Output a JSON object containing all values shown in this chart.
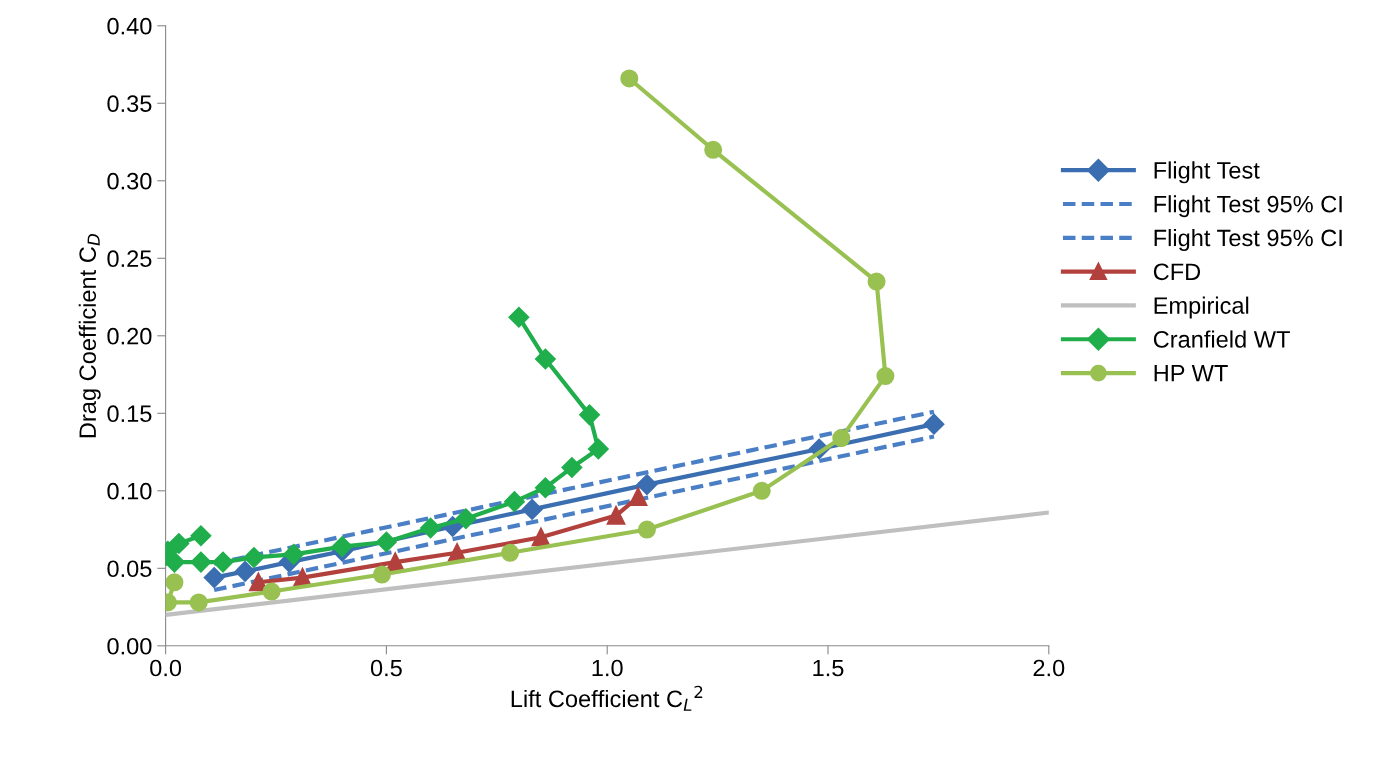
{
  "chart_data": {
    "type": "line",
    "xlabel": "Lift Coefficient C$_{L}$$^{2}$",
    "ylabel": "Drag Coefficient C$_{D}$",
    "xlim": [
      0,
      2.0
    ],
    "ylim": [
      0,
      0.4
    ],
    "xticks": [
      {
        "value": 0,
        "label": "0.0"
      },
      {
        "value": 0.5,
        "label": "0.5"
      },
      {
        "value": 1.0,
        "label": "1.0"
      },
      {
        "value": 1.5,
        "label": "1.5"
      },
      {
        "value": 2.0,
        "label": "2.0"
      }
    ],
    "yticks": [
      {
        "value": 0,
        "label": "0.00"
      },
      {
        "value": 0.05,
        "label": "0.05"
      },
      {
        "value": 0.1,
        "label": "0.10"
      },
      {
        "value": 0.15,
        "label": "0.15"
      },
      {
        "value": 0.2,
        "label": "0.20"
      },
      {
        "value": 0.25,
        "label": "0.25"
      },
      {
        "value": 0.3,
        "label": "0.30"
      },
      {
        "value": 0.35,
        "label": "0.35"
      },
      {
        "value": 0.4,
        "label": "0.40"
      }
    ],
    "grid": false,
    "legend": "right",
    "series": [
      {
        "name": "Flight Test",
        "color": "#3a6eb0",
        "marker": "diamond",
        "line_style": "solid",
        "x": [
          0.11,
          0.18,
          0.28,
          0.4,
          0.65,
          0.83,
          1.09,
          1.48,
          1.74
        ],
        "values": [
          0.044,
          0.048,
          0.054,
          0.061,
          0.077,
          0.088,
          0.104,
          0.127,
          0.143
        ]
      },
      {
        "name": "Flight Test 95% CI",
        "color": "#4a7fc6",
        "marker": "none",
        "line_style": "dashed",
        "x": [
          0.11,
          1.74
        ],
        "values": [
          0.053,
          0.151
        ]
      },
      {
        "name": "Flight Test 95% CI",
        "color": "#4a7fc6",
        "marker": "none",
        "line_style": "dashed",
        "x": [
          0.11,
          1.74
        ],
        "values": [
          0.036,
          0.135
        ]
      },
      {
        "name": "CFD",
        "color": "#b2403c",
        "marker": "triangle",
        "line_style": "solid",
        "x": [
          0.21,
          0.31,
          0.52,
          0.66,
          0.85,
          1.02,
          1.07
        ],
        "values": [
          0.041,
          0.044,
          0.054,
          0.06,
          0.07,
          0.084,
          0.096
        ]
      },
      {
        "name": "Empirical",
        "color": "#bfbfbf",
        "marker": "none",
        "line_style": "solid",
        "x": [
          0,
          2.0
        ],
        "values": [
          0.02,
          0.086
        ]
      },
      {
        "name": "Cranfield WT",
        "color": "#1fae4b",
        "marker": "diamond",
        "line_style": "solid",
        "x": [
          0.08,
          0.03,
          0.005,
          0,
          0.02,
          0.08,
          0.13,
          0.2,
          0.29,
          0.4,
          0.5,
          0.6,
          0.68,
          0.79,
          0.86,
          0.92,
          0.98,
          0.96,
          0.86,
          0.8
        ],
        "values": [
          0.071,
          0.066,
          0.061,
          0.058,
          0.054,
          0.054,
          0.054,
          0.057,
          0.059,
          0.064,
          0.067,
          0.076,
          0.082,
          0.093,
          0.102,
          0.115,
          0.127,
          0.149,
          0.185,
          0.212
        ]
      },
      {
        "name": "HP WT",
        "color": "#98c151",
        "marker": "circle",
        "line_style": "solid",
        "x": [
          0.02,
          0.005,
          0.075,
          0.24,
          0.49,
          0.78,
          1.09,
          1.35,
          1.53,
          1.63,
          1.61,
          1.24,
          1.05
        ],
        "values": [
          0.041,
          0.028,
          0.028,
          0.035,
          0.046,
          0.06,
          0.075,
          0.1,
          0.134,
          0.174,
          0.235,
          0.32,
          0.366
        ]
      }
    ]
  }
}
